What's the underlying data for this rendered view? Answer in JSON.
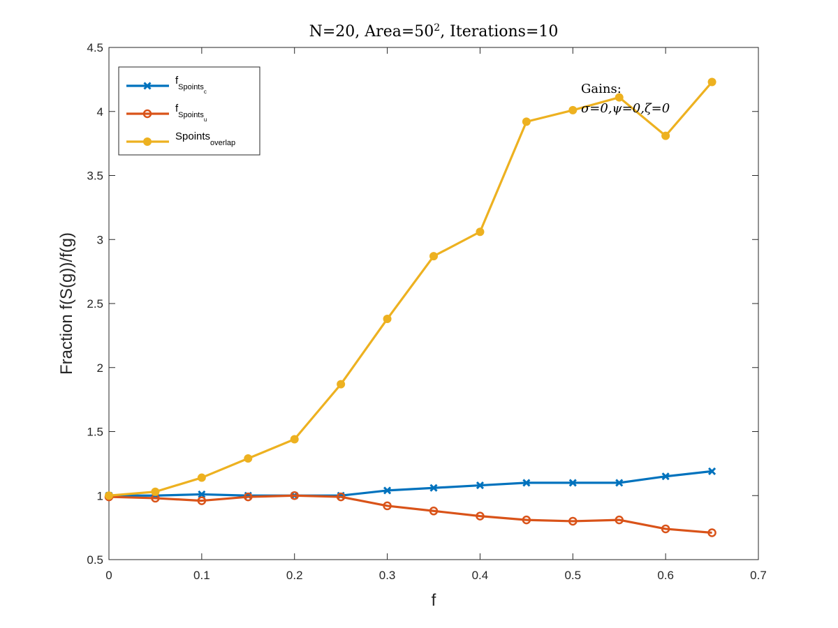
{
  "chart_data": {
    "type": "line",
    "title": {
      "main": "N=20, Area=50",
      "superscript": "2",
      "rest": ", Iterations=10"
    },
    "xlabel": "f",
    "ylabel": "Fraction f(S(g))/f(g)",
    "xlim": [
      0,
      0.7
    ],
    "ylim": [
      0.5,
      4.5
    ],
    "xticks": [
      0,
      0.1,
      0.2,
      0.3,
      0.4,
      0.5,
      0.6,
      0.7
    ],
    "xtick_labels": [
      "0",
      "0.1",
      "0.2",
      "0.3",
      "0.4",
      "0.5",
      "0.6",
      "0.7"
    ],
    "yticks": [
      0.5,
      1,
      1.5,
      2,
      2.5,
      3,
      3.5,
      4,
      4.5
    ],
    "ytick_labels": [
      "0.5",
      "1",
      "1.5",
      "2",
      "2.5",
      "3",
      "3.5",
      "4",
      "4.5"
    ],
    "grid": false,
    "legend_position": "top-left",
    "x": [
      0,
      0.05,
      0.1,
      0.15,
      0.2,
      0.25,
      0.3,
      0.35,
      0.4,
      0.45,
      0.5,
      0.55,
      0.6,
      0.65
    ],
    "series": [
      {
        "name": "fSpointsc",
        "label_base": "f",
        "label_sub": "Spoints",
        "label_subsub": "c",
        "color": "#0072BD",
        "marker": "x",
        "values": [
          1.0,
          1.0,
          1.01,
          1.0,
          1.0,
          1.0,
          1.04,
          1.06,
          1.08,
          1.1,
          1.1,
          1.1,
          1.15,
          1.19
        ]
      },
      {
        "name": "fSpointsu",
        "label_base": "f",
        "label_sub": "Spoints",
        "label_subsub": "u",
        "color": "#D95319",
        "marker": "circle-open",
        "values": [
          0.99,
          0.98,
          0.96,
          0.99,
          1.0,
          0.99,
          0.92,
          0.88,
          0.84,
          0.81,
          0.8,
          0.81,
          0.74,
          0.71
        ]
      },
      {
        "name": "Spointsoverlap",
        "label_base": "Spoints",
        "label_sub": "overlap",
        "label_subsub": "",
        "color": "#EDB120",
        "marker": "circle-filled",
        "values": [
          1.0,
          1.03,
          1.14,
          1.29,
          1.44,
          1.87,
          2.38,
          2.87,
          3.06,
          3.92,
          4.01,
          4.11,
          3.81,
          4.23
        ]
      }
    ],
    "annotation": {
      "line1": "Gains:",
      "line2": "σ=0,ψ=0,ζ=0"
    }
  }
}
